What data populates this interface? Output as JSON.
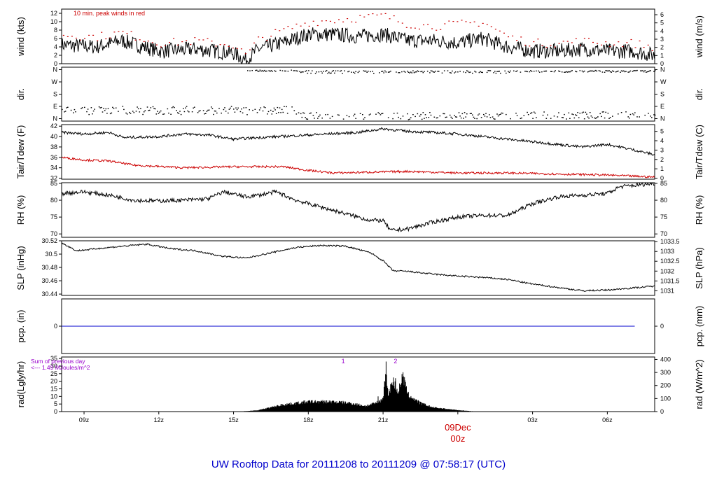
{
  "footer": {
    "title": "UW Rooftop Data for 20111208  to  20111209 @ 07:58:17  (UTC)",
    "title_color": "#0000cc"
  },
  "chart_data": {
    "type": "line",
    "x_axis": {
      "ticks": [
        "09z",
        "12z",
        "15z",
        "18z",
        "21z",
        "09Dec",
        "03z",
        "06z"
      ],
      "tick_hours": [
        9,
        12,
        15,
        18,
        21,
        24,
        27,
        30
      ],
      "range_hours": [
        8.1,
        31.9
      ],
      "day_marker": {
        "date": "09Dec",
        "time": "00z",
        "hour": 24,
        "color": "#cc0000"
      }
    },
    "panels": [
      {
        "id": "wind",
        "ylabel": "wind (kts)",
        "ylabel_right": "wind (m/s)",
        "ylim": [
          0,
          13
        ],
        "yticks": [
          0,
          2,
          4,
          6,
          8,
          10,
          12
        ],
        "right_yticks": [
          "0",
          "1",
          "2",
          "3",
          "4",
          "5",
          "6"
        ],
        "right_ytick_values": [
          0,
          1.944,
          3.888,
          5.832,
          7.776,
          9.72,
          11.664
        ],
        "annotation": "10 min. peak winds in red",
        "annotation_color": "#cc0000",
        "series": [
          {
            "name": "wind",
            "color": "#000000",
            "style": "line",
            "knots": [
              [
                8.1,
                4.5
              ],
              [
                9.5,
                4
              ],
              [
                10.5,
                5.5
              ],
              [
                12,
                3
              ],
              [
                13.5,
                3.5
              ],
              [
                15,
                2.5
              ],
              [
                15.5,
                0.8
              ],
              [
                16,
                3.5
              ],
              [
                17,
                5
              ],
              [
                18,
                7
              ],
              [
                19,
                7
              ],
              [
                20,
                6.5
              ],
              [
                21,
                7
              ],
              [
                22,
                5.5
              ],
              [
                23,
                5.5
              ],
              [
                24,
                5
              ],
              [
                25,
                6
              ],
              [
                26,
                4
              ],
              [
                27,
                3
              ],
              [
                28,
                3
              ],
              [
                29,
                3.5
              ],
              [
                30,
                3
              ],
              [
                31,
                3
              ],
              [
                31.9,
                2
              ]
            ],
            "noise": 1.8
          },
          {
            "name": "peak",
            "color": "#cc0000",
            "style": "dots",
            "knots": [
              [
                8.1,
                7
              ],
              [
                9.5,
                6.5
              ],
              [
                10.5,
                7.5
              ],
              [
                12,
                5
              ],
              [
                13.5,
                5.5
              ],
              [
                15,
                4.5
              ],
              [
                15.5,
                2
              ],
              [
                16,
                6
              ],
              [
                17,
                8
              ],
              [
                18,
                10
              ],
              [
                19,
                10.5
              ],
              [
                20,
                11
              ],
              [
                21,
                11.5
              ],
              [
                22,
                9.5
              ],
              [
                23,
                9
              ],
              [
                24,
                9.5
              ],
              [
                25,
                10
              ],
              [
                26,
                6.5
              ],
              [
                27,
                5
              ],
              [
                28,
                5
              ],
              [
                29,
                5.5
              ],
              [
                30,
                5
              ],
              [
                31,
                5
              ],
              [
                31.9,
                4
              ]
            ],
            "noise": 1.0
          }
        ]
      },
      {
        "id": "dir",
        "ylabel": "dir.",
        "ylabel_right": "dir.",
        "ylim": [
          -0.2,
          4.2
        ],
        "yticks": [
          0,
          1,
          2,
          3,
          4
        ],
        "ytick_labels": [
          "N",
          "E",
          "S",
          "W",
          "N"
        ],
        "right_ytick_labels": [
          "N",
          "E",
          "S",
          "W",
          "N"
        ],
        "series": [
          {
            "name": "direction",
            "color": "#000000",
            "style": "dots",
            "bands": [
              {
                "from": 8.1,
                "to": 17.5,
                "center": 0.7,
                "spread": 0.35
              },
              {
                "from": 15.5,
                "to": 17.5,
                "center": 3.95,
                "spread": 0.05
              },
              {
                "from": 17.5,
                "to": 26,
                "center": 0.25,
                "spread": 0.3
              },
              {
                "from": 17.5,
                "to": 26,
                "center": 3.85,
                "spread": 0.12
              },
              {
                "from": 26,
                "to": 31.9,
                "center": 0.3,
                "spread": 0.3
              },
              {
                "from": 26,
                "to": 31.9,
                "center": 3.9,
                "spread": 0.08
              }
            ]
          }
        ]
      },
      {
        "id": "temp",
        "ylabel": "Tair/Tdew (F)",
        "ylabel_right": "Tair/Tdew (C)",
        "ylim": [
          31.8,
          42.3
        ],
        "yticks": [
          32,
          34,
          36,
          38,
          40,
          42
        ],
        "right_yticks": [
          "0",
          "1",
          "2",
          "3",
          "4",
          "5"
        ],
        "right_ytick_values": [
          32,
          33.8,
          35.6,
          37.4,
          39.2,
          41
        ],
        "series": [
          {
            "name": "Tair",
            "color": "#000000",
            "style": "line",
            "knots": [
              [
                8.1,
                40.8
              ],
              [
                9,
                40.5
              ],
              [
                10,
                40.8
              ],
              [
                10.6,
                39.8
              ],
              [
                12,
                40
              ],
              [
                13,
                40.5
              ],
              [
                14,
                40.3
              ],
              [
                15,
                39.5
              ],
              [
                16,
                39.8
              ],
              [
                18,
                40.3
              ],
              [
                20,
                40.8
              ],
              [
                21,
                41.5
              ],
              [
                22,
                41
              ],
              [
                23,
                40.8
              ],
              [
                24,
                40.5
              ],
              [
                25,
                40
              ],
              [
                26,
                39.5
              ],
              [
                27,
                39
              ],
              [
                28,
                38.5
              ],
              [
                29,
                38
              ],
              [
                30,
                38.5
              ],
              [
                31,
                37.5
              ],
              [
                31.9,
                36.5
              ]
            ],
            "noise": 0.25
          },
          {
            "name": "Tdew",
            "color": "#cc0000",
            "style": "line",
            "knots": [
              [
                8.1,
                36
              ],
              [
                9,
                35.5
              ],
              [
                10,
                35.3
              ],
              [
                11,
                34.5
              ],
              [
                13,
                34
              ],
              [
                15,
                34.2
              ],
              [
                17,
                34.2
              ],
              [
                18,
                33.5
              ],
              [
                19,
                33
              ],
              [
                21,
                33.2
              ],
              [
                22,
                33.3
              ],
              [
                24,
                33
              ],
              [
                26,
                33
              ],
              [
                28,
                32.8
              ],
              [
                30,
                32.6
              ],
              [
                31.9,
                32.2
              ]
            ],
            "noise": 0.2
          }
        ]
      },
      {
        "id": "rh",
        "ylabel": "RH (%)",
        "ylabel_right": "RH (%)",
        "ylim": [
          69,
          85.2
        ],
        "yticks": [
          70,
          75,
          80,
          85
        ],
        "right_yticks": [
          "70",
          "75",
          "80",
          "85"
        ],
        "right_ytick_values": [
          70,
          75,
          80,
          85
        ],
        "series": [
          {
            "name": "RH",
            "color": "#000000",
            "style": "line",
            "knots": [
              [
                8.1,
                82
              ],
              [
                9,
                82.5
              ],
              [
                10,
                81.5
              ],
              [
                11,
                80
              ],
              [
                12,
                79.8
              ],
              [
                13,
                80
              ],
              [
                14,
                80.5
              ],
              [
                14.6,
                82.5
              ],
              [
                15.5,
                81
              ],
              [
                16,
                81.5
              ],
              [
                16.7,
                82.5
              ],
              [
                17.5,
                80
              ],
              [
                18.5,
                78
              ],
              [
                19.5,
                76
              ],
              [
                20.5,
                74
              ],
              [
                21,
                74
              ],
              [
                21.3,
                71
              ],
              [
                22,
                71.5
              ],
              [
                23,
                73.5
              ],
              [
                24,
                75
              ],
              [
                25,
                75.5
              ],
              [
                26,
                75.5
              ],
              [
                27,
                79
              ],
              [
                28,
                81
              ],
              [
                29,
                81.5
              ],
              [
                30,
                82
              ],
              [
                30.5,
                84
              ],
              [
                31.9,
                85
              ]
            ],
            "noise": 0.6
          }
        ]
      },
      {
        "id": "slp",
        "ylabel": "SLP (inHg)",
        "ylabel_right": "SLP (hPa)",
        "ylim": [
          30.438,
          30.52
        ],
        "yticks": [
          30.44,
          30.46,
          30.48,
          30.5,
          30.52
        ],
        "right_yticks": [
          "1031",
          "1031.5",
          "1032",
          "1032.5",
          "1033",
          "1033.5"
        ],
        "right_ytick_values": [
          30.445,
          30.4597,
          30.4745,
          30.4893,
          30.504,
          30.5188
        ],
        "series": [
          {
            "name": "SLP",
            "color": "#000000",
            "style": "line",
            "knots": [
              [
                8.1,
                30.517
              ],
              [
                8.7,
                30.505
              ],
              [
                10,
                30.51
              ],
              [
                11.5,
                30.515
              ],
              [
                12.5,
                30.508
              ],
              [
                13.5,
                30.505
              ],
              [
                14.5,
                30.497
              ],
              [
                15.5,
                30.494
              ],
              [
                16.5,
                30.502
              ],
              [
                17.5,
                30.51
              ],
              [
                18.5,
                30.513
              ],
              [
                19.5,
                30.512
              ],
              [
                20.5,
                30.502
              ],
              [
                21,
                30.49
              ],
              [
                21.4,
                30.475
              ],
              [
                22,
                30.474
              ],
              [
                23,
                30.47
              ],
              [
                24,
                30.467
              ],
              [
                25,
                30.465
              ],
              [
                26,
                30.462
              ],
              [
                27,
                30.455
              ],
              [
                28,
                30.45
              ],
              [
                29,
                30.445
              ],
              [
                30,
                30.446
              ],
              [
                31.9,
                30.452
              ]
            ],
            "noise": 0.0012
          }
        ]
      },
      {
        "id": "pcp",
        "ylabel": "pcp. (in)",
        "ylabel_right": "pcp. (mm)",
        "ylim": [
          -1,
          1
        ],
        "yticks": [
          0
        ],
        "right_yticks": [
          "0"
        ],
        "right_ytick_values": [
          0
        ],
        "series": [
          {
            "name": "pcp",
            "color": "#0000cc",
            "style": "line",
            "knots": [
              [
                8.1,
                0
              ],
              [
                31.9,
                0
              ]
            ],
            "noise": 0
          }
        ]
      },
      {
        "id": "rad",
        "ylabel": "rad(Lgly/hr)",
        "ylabel_right": "rad (W/m^2)",
        "ylim": [
          0,
          36
        ],
        "yticks": [
          0,
          5,
          10,
          15,
          20,
          25,
          30,
          35
        ],
        "right_yticks": [
          "0",
          "100",
          "200",
          "300",
          "400"
        ],
        "right_ytick_values": [
          0,
          8.6,
          17.2,
          25.8,
          34.4
        ],
        "annotation_lines": [
          "Sum of previous day",
          "<--- 1.49 MJoules/m^2"
        ],
        "annotation_color": "#9900cc",
        "markers": [
          {
            "label": "1",
            "hour": 19.4
          },
          {
            "label": "2",
            "hour": 21.5
          }
        ],
        "marker_color": "#9900cc",
        "series": [
          {
            "name": "rad",
            "color": "#000000",
            "style": "bars",
            "knots": [
              [
                15.2,
                0
              ],
              [
                16,
                1
              ],
              [
                17,
                5
              ],
              [
                18,
                7
              ],
              [
                19,
                7
              ],
              [
                19.7,
                6
              ],
              [
                20.3,
                4
              ],
              [
                20.7,
                6
              ],
              [
                21,
                9
              ],
              [
                21.1,
                30
              ],
              [
                21.2,
                12
              ],
              [
                21.4,
                22
              ],
              [
                21.6,
                14
              ],
              [
                21.8,
                25
              ],
              [
                22,
                12
              ],
              [
                22.5,
                6
              ],
              [
                23,
                3
              ],
              [
                24,
                1
              ],
              [
                24.8,
                0
              ]
            ],
            "spikes": [
              [
                21.12,
                33
              ],
              [
                21.5,
                22
              ],
              [
                21.8,
                26
              ],
              [
                20.8,
                10
              ],
              [
                21.3,
                18
              ]
            ]
          }
        ]
      }
    ]
  }
}
